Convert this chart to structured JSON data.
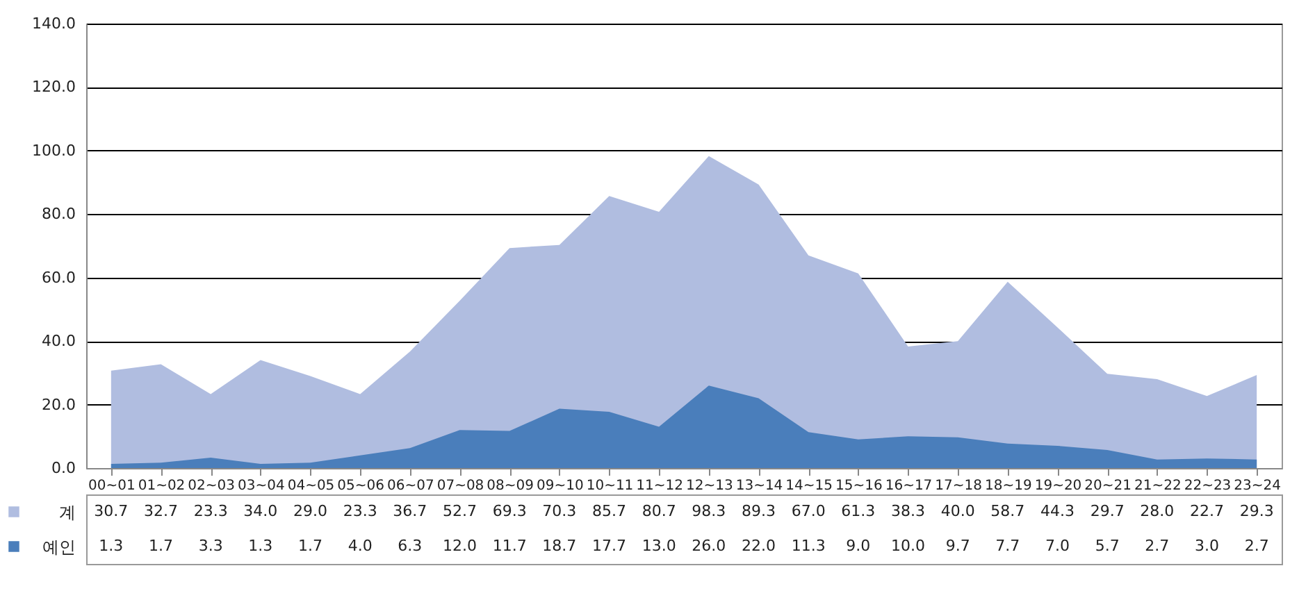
{
  "chart_data": {
    "type": "area",
    "categories": [
      "00~01",
      "01~02",
      "02~03",
      "03~04",
      "04~05",
      "05~06",
      "06~07",
      "07~08",
      "08~09",
      "09~10",
      "10~11",
      "11~12",
      "12~13",
      "13~14",
      "14~15",
      "15~16",
      "16~17",
      "17~18",
      "18~19",
      "19~20",
      "20~21",
      "21~22",
      "22~23",
      "23~24"
    ],
    "series": [
      {
        "name": "계",
        "color": "#b0bde0",
        "values": [
          30.7,
          32.7,
          23.3,
          34.0,
          29.0,
          23.3,
          36.7,
          52.7,
          69.3,
          70.3,
          85.7,
          80.7,
          98.3,
          89.3,
          67.0,
          61.3,
          38.3,
          40.0,
          58.7,
          44.3,
          29.7,
          28.0,
          22.7,
          29.3
        ],
        "value_labels": [
          "30.7",
          "32.7",
          "23.3",
          "34.0",
          "29.0",
          "23.3",
          "36.7",
          "52.7",
          "69.3",
          "70.3",
          "85.7",
          "80.7",
          "98.3",
          "89.3",
          "67.0",
          "61.3",
          "38.3",
          "40.0",
          "58.7",
          "44.3",
          "29.7",
          "28.0",
          "22.7",
          "29.3"
        ]
      },
      {
        "name": "예인",
        "color": "#4a7ebb",
        "values": [
          1.3,
          1.7,
          3.3,
          1.3,
          1.7,
          4.0,
          6.3,
          12.0,
          11.7,
          18.7,
          17.7,
          13.0,
          26.0,
          22.0,
          11.3,
          9.0,
          10.0,
          9.7,
          7.7,
          7.0,
          5.7,
          2.7,
          3.0,
          2.7
        ],
        "value_labels": [
          "1.3",
          "1.7",
          "3.3",
          "1.3",
          "1.7",
          "4.0",
          "6.3",
          "12.0",
          "11.7",
          "18.7",
          "17.7",
          "13.0",
          "26.0",
          "22.0",
          "11.3",
          "9.0",
          "10.0",
          "9.7",
          "7.7",
          "7.0",
          "5.7",
          "2.7",
          "3.0",
          "2.7"
        ]
      }
    ],
    "ylim": [
      0,
      140
    ],
    "yticks": [
      {
        "value": 0,
        "label": "0.0"
      },
      {
        "value": 20,
        "label": "20.0"
      },
      {
        "value": 40,
        "label": "40.0"
      },
      {
        "value": 60,
        "label": "60.0"
      },
      {
        "value": 80,
        "label": "80.0"
      },
      {
        "value": 100,
        "label": "100.0"
      },
      {
        "value": 120,
        "label": "120.0"
      },
      {
        "value": 140,
        "label": "140.0"
      }
    ],
    "grid": "y",
    "legend": "bottom left"
  }
}
